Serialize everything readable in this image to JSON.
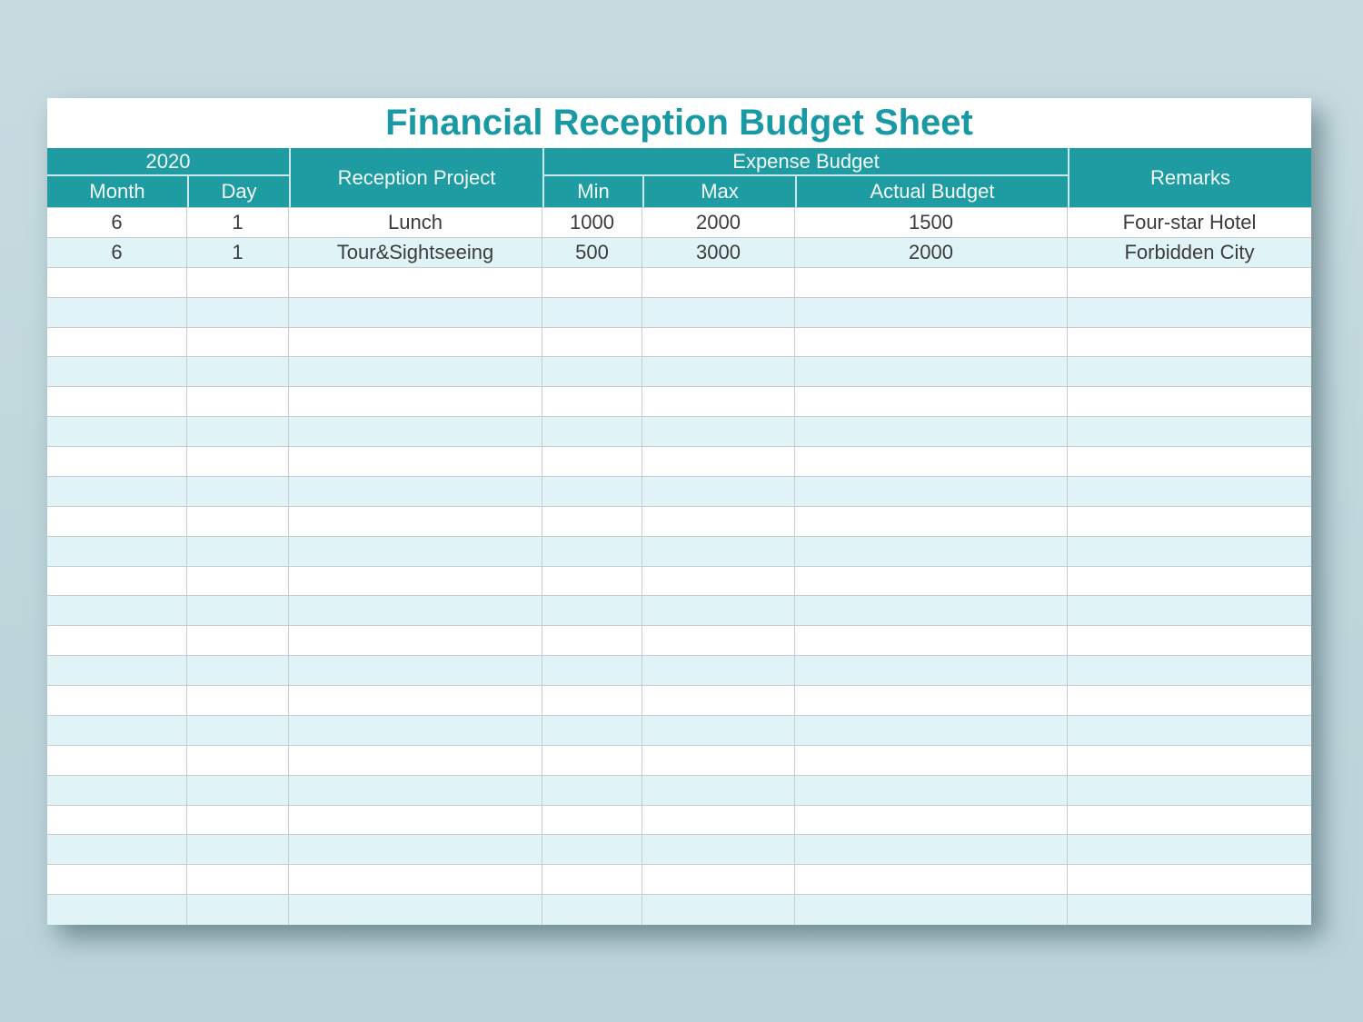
{
  "title": "Financial Reception Budget Sheet",
  "colors": {
    "header_teal": "#1f9ba2",
    "title_teal": "#1899a3",
    "alt_row_cyan": "#e0f4f8",
    "gridline_gray": "#c8cccd",
    "page_background": "#c0d7dc",
    "data_text": "#3c3c3c",
    "header_text": "#f2fafa"
  },
  "table": {
    "header": {
      "year": "2020",
      "month": "Month",
      "day": "Day",
      "reception_project": "Reception Project",
      "expense_budget": "Expense Budget",
      "min": "Min",
      "max": "Max",
      "actual_budget": "Actual Budget",
      "remarks": "Remarks"
    },
    "columns": [
      "month",
      "day",
      "project",
      "min",
      "max",
      "actual",
      "remarks"
    ],
    "rows": [
      {
        "month": "6",
        "day": "1",
        "project": "Lunch",
        "min": "1000",
        "max": "2000",
        "actual": "1500",
        "remarks": "Four-star Hotel"
      },
      {
        "month": "6",
        "day": "1",
        "project": "Tour&Sightseeing",
        "min": "500",
        "max": "3000",
        "actual": "2000",
        "remarks": "Forbidden City"
      }
    ],
    "empty_row_count": 22
  }
}
